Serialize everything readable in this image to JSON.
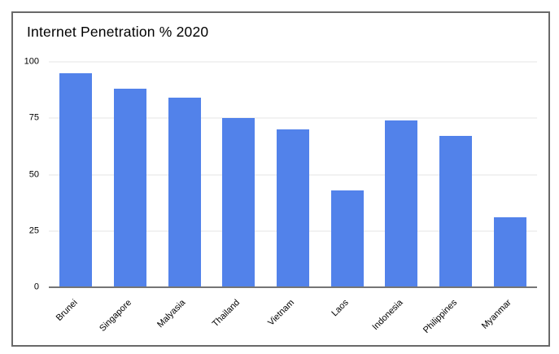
{
  "chart_data": {
    "type": "bar",
    "title": "Internet Penetration % 2020",
    "categories": [
      "Brunei",
      "Singapore",
      "Malyasia",
      "Thailand",
      "Vietnam",
      "Laos",
      "Indonesia",
      "Philippines",
      "Myanmar"
    ],
    "values": [
      95,
      88,
      84,
      75,
      70,
      43,
      74,
      67,
      31
    ],
    "xlabel": "",
    "ylabel": "",
    "ylim": [
      0,
      100
    ],
    "yticks": [
      0,
      25,
      50,
      75,
      100
    ],
    "grid": true,
    "legend": "none",
    "x_label_rotation_deg": 45,
    "bar_color": "#5282ea",
    "gridline_color": "#e6e6e6",
    "axis_line_color": "#757575",
    "frame_border_color": "#696969",
    "text_color": "#000000",
    "background_color": "#ffffff"
  }
}
